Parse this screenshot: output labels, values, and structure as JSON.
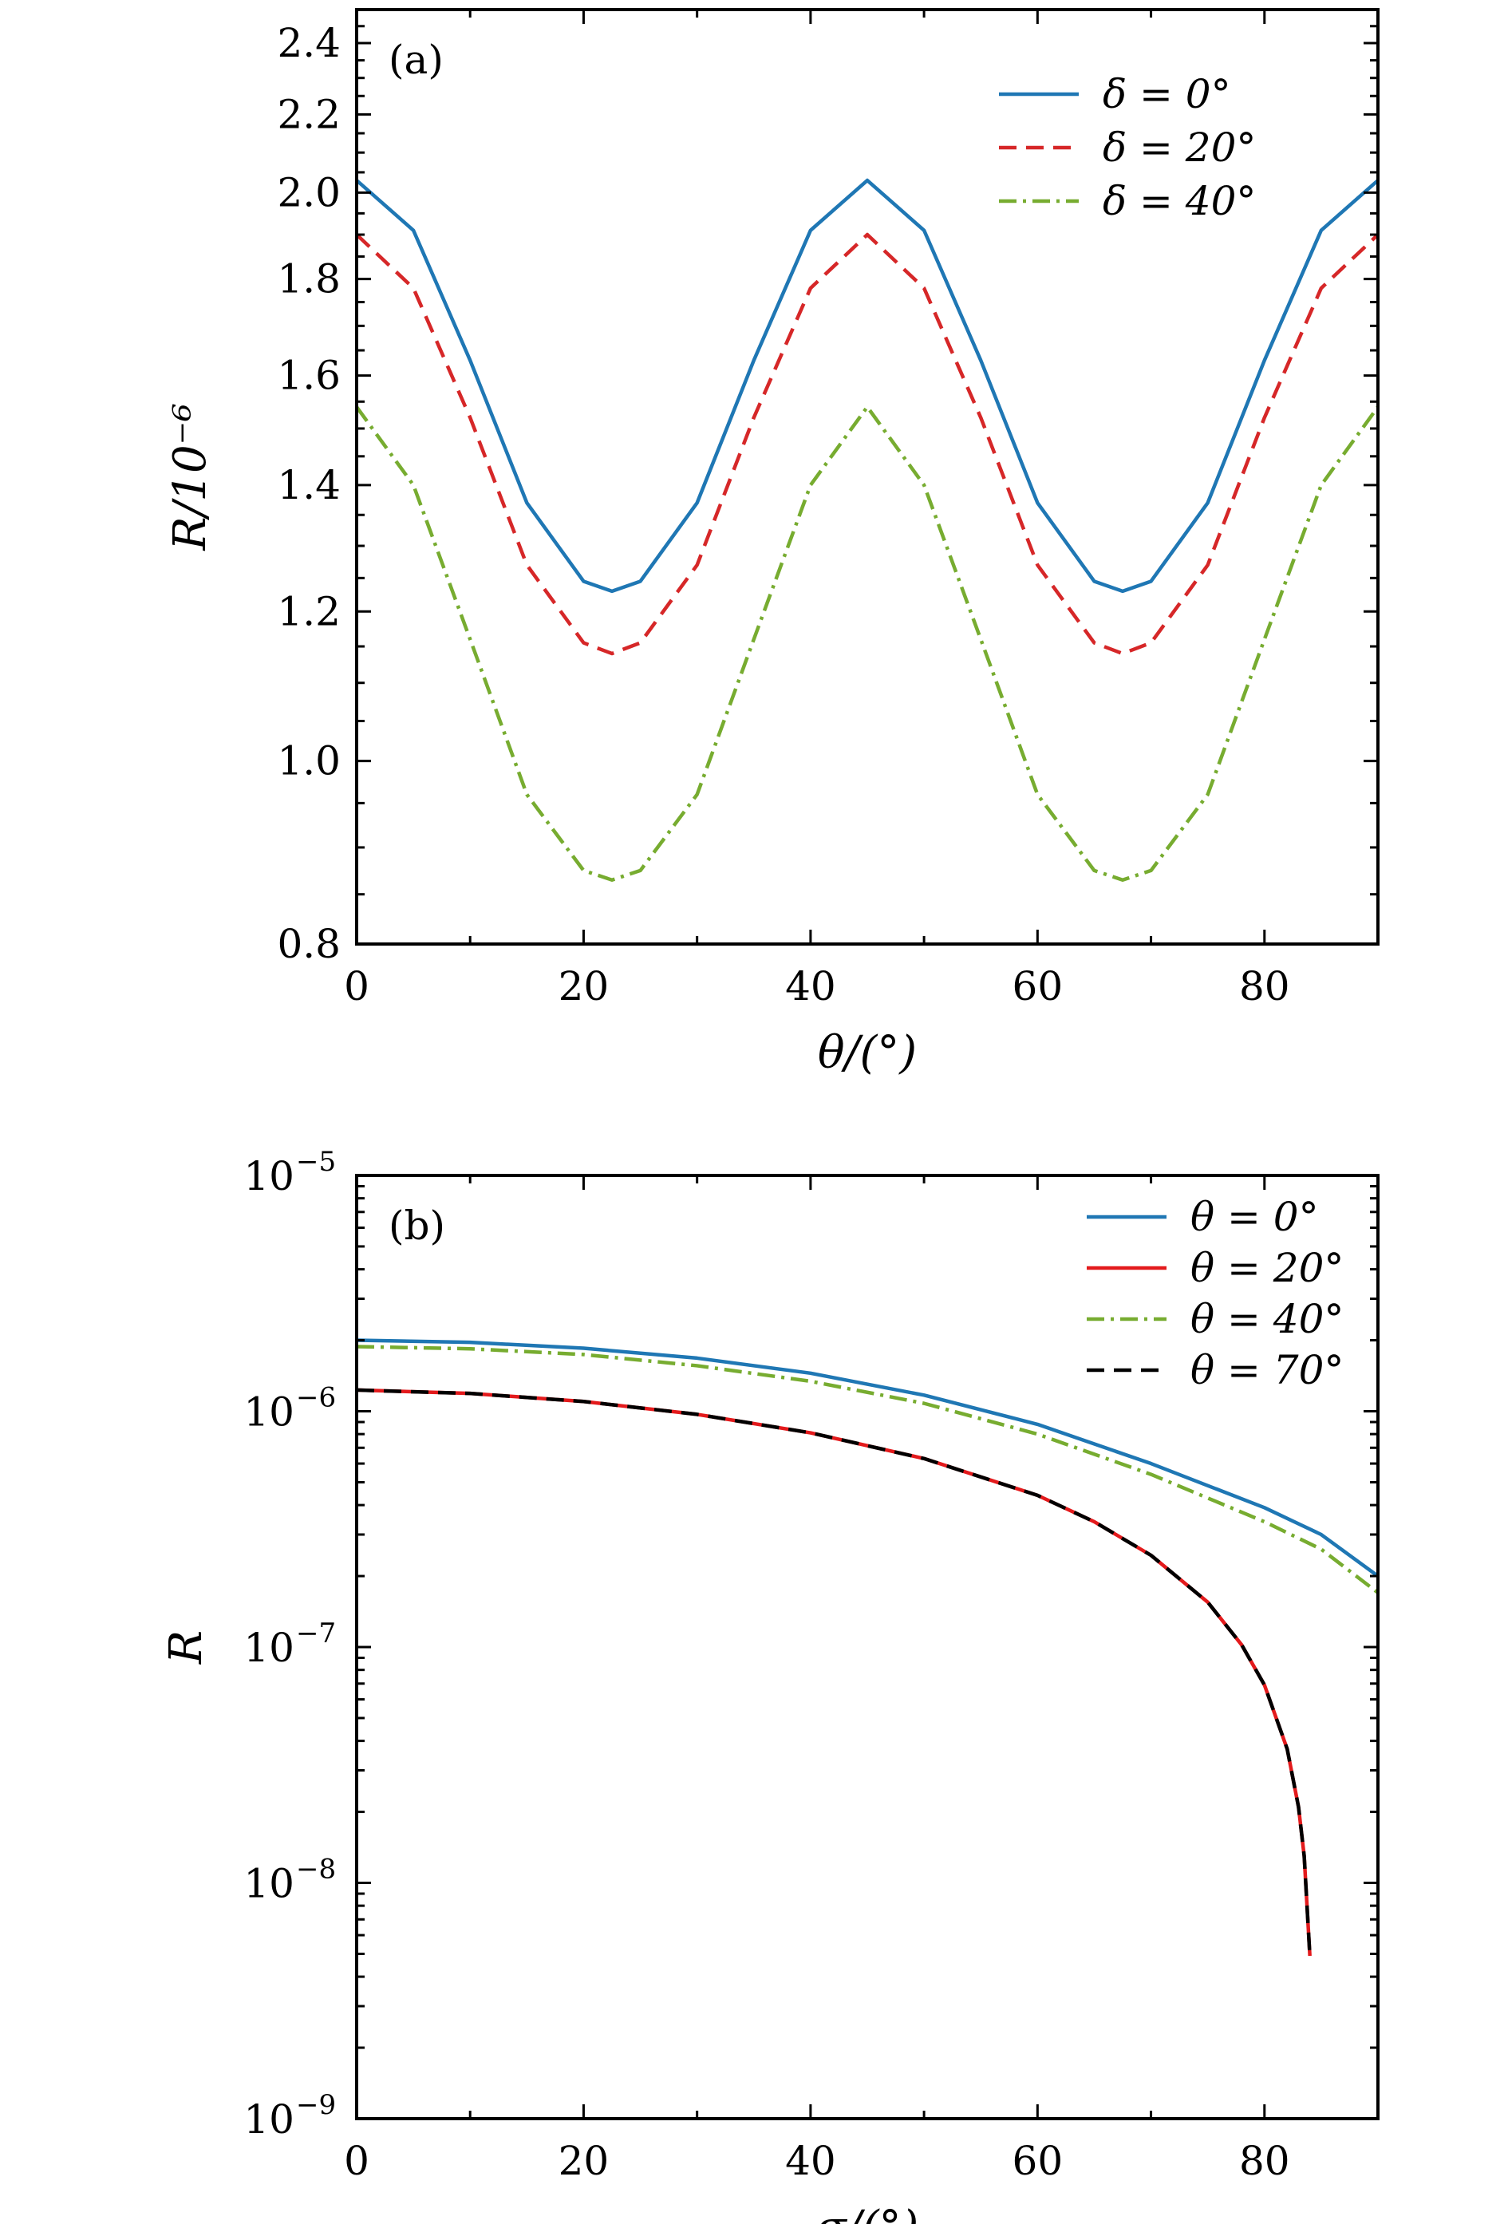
{
  "chart_data": [
    {
      "panel_label": "(a)",
      "type": "line",
      "xlabel": "θ/(°)",
      "ylabel": "R/10⁻⁶",
      "xlim": [
        0,
        90
      ],
      "ylim": [
        0.8,
        2.5
      ],
      "yscale": "log",
      "grid": false,
      "legend_position": "top-right",
      "x_ticks": [
        0,
        20,
        40,
        60,
        80
      ],
      "x_tick_labels": [
        "0",
        "20",
        "40",
        "60",
        "80"
      ],
      "y_ticks": [
        0.8,
        1.0,
        1.2,
        1.4,
        1.6,
        1.8,
        2.0,
        2.2,
        2.4
      ],
      "y_tick_labels": [
        "0.8",
        "1.0",
        "1.2",
        "1.4",
        "1.6",
        "1.8",
        "2.0",
        "2.2",
        "2.4"
      ],
      "x": [
        0,
        5,
        10,
        15,
        20,
        22.5,
        25,
        30,
        35,
        40,
        45,
        50,
        55,
        60,
        65,
        67.5,
        70,
        75,
        80,
        85,
        90
      ],
      "series": [
        {
          "name": "δ = 0°",
          "color": "#1f77b4",
          "style": "solid",
          "values": [
            2.03,
            1.91,
            1.63,
            1.37,
            1.245,
            1.23,
            1.245,
            1.37,
            1.63,
            1.91,
            2.03,
            1.91,
            1.63,
            1.37,
            1.245,
            1.23,
            1.245,
            1.37,
            1.63,
            1.91,
            2.03
          ]
        },
        {
          "name": "δ = 20°",
          "color": "#d62728",
          "style": "dashed",
          "values": [
            1.9,
            1.78,
            1.52,
            1.27,
            1.155,
            1.14,
            1.155,
            1.27,
            1.52,
            1.78,
            1.9,
            1.78,
            1.52,
            1.27,
            1.155,
            1.14,
            1.155,
            1.27,
            1.52,
            1.78,
            1.9
          ]
        },
        {
          "name": "δ = 40°",
          "color": "#77ac30",
          "style": "dashdot",
          "values": [
            1.54,
            1.4,
            1.16,
            0.96,
            0.875,
            0.865,
            0.875,
            0.96,
            1.16,
            1.4,
            1.54,
            1.4,
            1.16,
            0.96,
            0.875,
            0.865,
            0.875,
            0.96,
            1.16,
            1.4,
            1.54
          ]
        }
      ]
    },
    {
      "panel_label": "(b)",
      "type": "line",
      "xlabel": "σ/(°)",
      "ylabel": "R",
      "xlim": [
        0,
        90
      ],
      "ylim": [
        1e-09,
        1e-05
      ],
      "yscale": "log",
      "grid": false,
      "legend_position": "top-right",
      "x_ticks": [
        0,
        20,
        40,
        60,
        80
      ],
      "x_tick_labels": [
        "0",
        "20",
        "40",
        "60",
        "80"
      ],
      "y_ticks": [
        1e-09,
        1e-08,
        1e-07,
        1e-06,
        1e-05
      ],
      "y_tick_labels": [
        {
          "base": "10",
          "exp": "−9"
        },
        {
          "base": "10",
          "exp": "−8"
        },
        {
          "base": "10",
          "exp": "−7"
        },
        {
          "base": "10",
          "exp": "−6"
        },
        {
          "base": "10",
          "exp": "−5"
        }
      ],
      "series": [
        {
          "name": "θ = 0°",
          "color": "#1f77b4",
          "style": "solid",
          "x": [
            0,
            10,
            20,
            30,
            40,
            50,
            60,
            70,
            80,
            85,
            90
          ],
          "values": [
            2e-06,
            1.96e-06,
            1.85e-06,
            1.68e-06,
            1.45e-06,
            1.17e-06,
            8.8e-07,
            6e-07,
            3.9e-07,
            3e-07,
            2e-07
          ]
        },
        {
          "name": "θ = 20°",
          "color": "#e31a1c",
          "style": "solid",
          "x": [
            0,
            10,
            20,
            30,
            40,
            50,
            60,
            65,
            70,
            75,
            78,
            80,
            82,
            83,
            83.5,
            84
          ],
          "values": [
            1.23e-06,
            1.19e-06,
            1.1e-06,
            9.7e-07,
            8.1e-07,
            6.3e-07,
            4.4e-07,
            3.4e-07,
            2.45e-07,
            1.55e-07,
            1.02e-07,
            6.9e-08,
            3.7e-08,
            2.1e-08,
            1.3e-08,
            4.9e-09
          ]
        },
        {
          "name": "θ = 40°",
          "color": "#77ac30",
          "style": "dashdot",
          "x": [
            0,
            10,
            20,
            30,
            40,
            50,
            60,
            70,
            80,
            85,
            90
          ],
          "values": [
            1.88e-06,
            1.84e-06,
            1.74e-06,
            1.56e-06,
            1.34e-06,
            1.08e-06,
            8e-07,
            5.4e-07,
            3.4e-07,
            2.6e-07,
            1.7e-07
          ]
        },
        {
          "name": "θ = 70°",
          "color": "#000000",
          "style": "dashed",
          "x": [
            0,
            10,
            20,
            30,
            40,
            50,
            60,
            65,
            70,
            75,
            78,
            80,
            82,
            83,
            83.5,
            84
          ],
          "values": [
            1.23e-06,
            1.19e-06,
            1.1e-06,
            9.7e-07,
            8.1e-07,
            6.3e-07,
            4.4e-07,
            3.4e-07,
            2.45e-07,
            1.55e-07,
            1.02e-07,
            6.9e-08,
            3.7e-08,
            2.1e-08,
            1.3e-08,
            4.9e-09
          ]
        }
      ]
    }
  ]
}
